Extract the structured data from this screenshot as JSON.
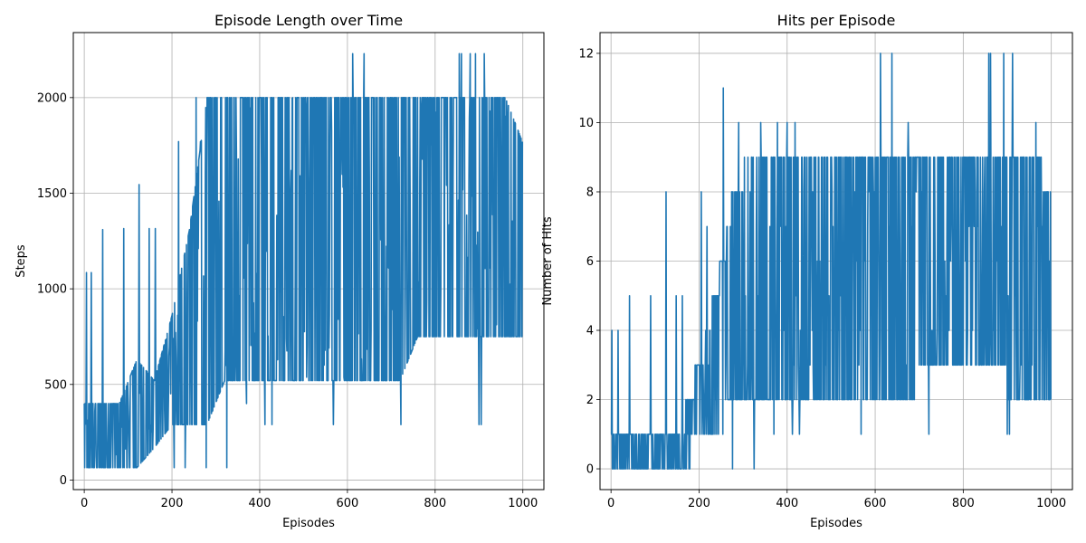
{
  "chart_data": [
    {
      "type": "line",
      "title": "Episode Length over Time",
      "xlabel": "Episodes",
      "ylabel": "Steps",
      "xlim": [
        -25,
        1048
      ],
      "ylim": [
        -50,
        2340
      ],
      "xticks": [
        0,
        200,
        400,
        600,
        800,
        1000
      ],
      "yticks": [
        0,
        500,
        1000,
        1500,
        2000
      ],
      "grid": true,
      "color": "#1f77b4",
      "series": [
        {
          "x": [
            0,
            40,
            80,
            120,
            160,
            200,
            240,
            280,
            320,
            360,
            400,
            440,
            480,
            520,
            560,
            600,
            640,
            680,
            720,
            760,
            800,
            840,
            880,
            920,
            960,
            999
          ],
          "low": [
            65,
            65,
            65,
            65,
            65,
            65,
            65,
            65,
            65,
            400,
            520,
            520,
            520,
            520,
            520,
            520,
            520,
            520,
            520,
            520,
            520,
            520,
            520,
            290,
            520,
            520
          ],
          "high": [
            1085,
            1310,
            1315,
            1545,
            1315,
            1770,
            2000,
            2000,
            2000,
            2000,
            2000,
            2000,
            2000,
            2000,
            2000,
            2230,
            2230,
            2000,
            2000,
            2000,
            2000,
            2230,
            2230,
            2230,
            2000,
            2000
          ],
          "typical_low": [
            65,
            65,
            65,
            65,
            170,
            290,
            290,
            290,
            520,
            520,
            520,
            520,
            520,
            520,
            520,
            520,
            520,
            520,
            520,
            750,
            750,
            750,
            750,
            750,
            750,
            750
          ],
          "typical_high": [
            400,
            400,
            400,
            630,
            520,
            860,
            1310,
            2000,
            2000,
            2000,
            2000,
            2000,
            2000,
            2000,
            2000,
            2000,
            2000,
            2000,
            2000,
            2000,
            2000,
            2000,
            2000,
            2000,
            2000,
            1770
          ],
          "spikes": [
            [
              5,
              1085
            ],
            [
              16,
              1085
            ],
            [
              42,
              1310
            ],
            [
              90,
              1315
            ],
            [
              125,
              1545
            ],
            [
              148,
              1315
            ],
            [
              162,
              1315
            ],
            [
              205,
              1770
            ],
            [
              215,
              1770
            ],
            [
              255,
              2000
            ],
            [
              265,
              1770
            ],
            [
              612,
              2230
            ],
            [
              638,
              2230
            ],
            [
              855,
              2230
            ],
            [
              860,
              2230
            ],
            [
              880,
              2230
            ],
            [
              892,
              2230
            ],
            [
              912,
              2230
            ],
            [
              568,
              290
            ],
            [
              722,
              290
            ],
            [
              900,
              290
            ],
            [
              905,
              290
            ],
            [
              325,
              65
            ],
            [
              278,
              65
            ],
            [
              230,
              65
            ],
            [
              205,
              65
            ],
            [
              412,
              290
            ],
            [
              428,
              290
            ],
            [
              370,
              400
            ]
          ]
        }
      ]
    },
    {
      "type": "line",
      "title": "Hits per Episode",
      "xlabel": "Episodes",
      "ylabel": "Number of Hits",
      "xlim": [
        -25,
        1048
      ],
      "ylim": [
        -0.6,
        12.6
      ],
      "xticks": [
        0,
        200,
        400,
        600,
        800,
        1000
      ],
      "yticks": [
        0,
        2,
        4,
        6,
        8,
        10,
        12
      ],
      "grid": true,
      "color": "#1f77b4",
      "series": [
        {
          "x": [
            0,
            40,
            80,
            120,
            160,
            200,
            240,
            280,
            320,
            360,
            400,
            440,
            480,
            520,
            560,
            600,
            640,
            680,
            720,
            760,
            800,
            840,
            880,
            920,
            960,
            999
          ],
          "low": [
            0,
            0,
            0,
            0,
            0,
            0,
            0,
            0,
            0,
            1,
            1,
            1,
            2,
            2,
            1,
            2,
            2,
            2,
            1,
            2,
            2,
            2,
            2,
            1,
            2,
            2
          ],
          "high": [
            4,
            5,
            5,
            8,
            5,
            8,
            11,
            10,
            10,
            10,
            10,
            10,
            9,
            9,
            9,
            12,
            12,
            10,
            9,
            9,
            9,
            12,
            12,
            12,
            10,
            9
          ],
          "typical_low": [
            0,
            0,
            0,
            0,
            0,
            1,
            1,
            2,
            2,
            2,
            2,
            2,
            2,
            2,
            2,
            2,
            2,
            2,
            3,
            3,
            3,
            3,
            3,
            2,
            2,
            2
          ],
          "typical_high": [
            1,
            1,
            1,
            1,
            1,
            3,
            5,
            8,
            9,
            9,
            9,
            9,
            9,
            9,
            9,
            9,
            9,
            9,
            9,
            9,
            9,
            9,
            9,
            9,
            9,
            8
          ],
          "spikes": [
            [
              2,
              4
            ],
            [
              16,
              4
            ],
            [
              42,
              5
            ],
            [
              90,
              5
            ],
            [
              125,
              8
            ],
            [
              148,
              5
            ],
            [
              162,
              5
            ],
            [
              205,
              8
            ],
            [
              218,
              7
            ],
            [
              255,
              11
            ],
            [
              290,
              10
            ],
            [
              340,
              10
            ],
            [
              378,
              10
            ],
            [
              400,
              10
            ],
            [
              418,
              10
            ],
            [
              612,
              12
            ],
            [
              638,
              12
            ],
            [
              675,
              10
            ],
            [
              858,
              12
            ],
            [
              862,
              12
            ],
            [
              892,
              12
            ],
            [
              912,
              12
            ],
            [
              965,
              10
            ],
            [
              568,
              1
            ],
            [
              722,
              1
            ],
            [
              900,
              1
            ],
            [
              905,
              1
            ],
            [
              325,
              0
            ],
            [
              370,
              1
            ],
            [
              412,
              1
            ],
            [
              428,
              1
            ],
            [
              276,
              0
            ]
          ]
        }
      ]
    }
  ]
}
